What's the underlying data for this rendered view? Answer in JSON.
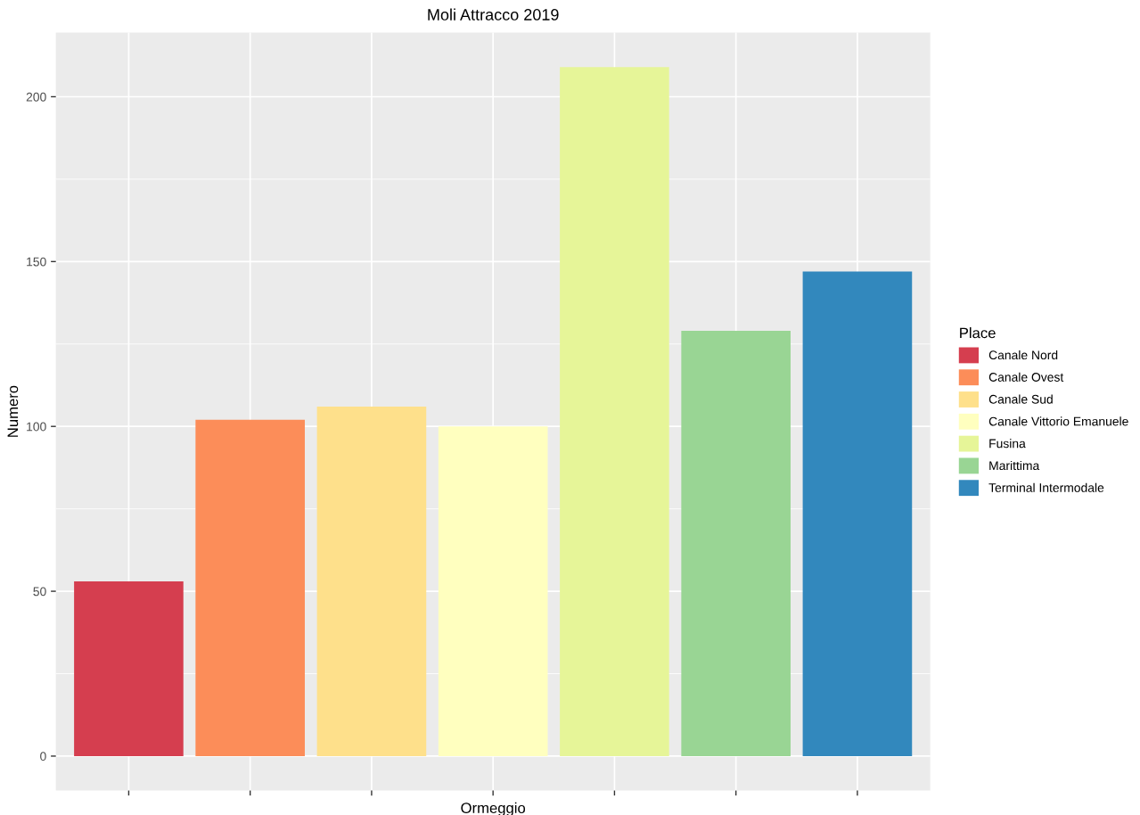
{
  "chart_data": {
    "type": "bar",
    "title": "Moli Attracco 2019",
    "xlabel": "Ormeggio",
    "ylabel": "Numero",
    "legend_title": "Place",
    "categories": [
      null,
      null,
      null,
      null,
      null,
      null,
      null
    ],
    "series": [
      {
        "name": "Canale Nord",
        "color": "#d53e4f",
        "values": [
          53,
          null,
          null,
          null,
          null,
          null,
          null
        ]
      },
      {
        "name": "Canale Ovest",
        "color": "#fc8d59",
        "values": [
          null,
          102,
          null,
          null,
          null,
          null,
          null
        ]
      },
      {
        "name": "Canale Sud",
        "color": "#fee08b",
        "values": [
          null,
          null,
          106,
          null,
          null,
          null,
          null
        ]
      },
      {
        "name": "Canale Vittorio Emanuele",
        "color": "#ffffbf",
        "values": [
          null,
          null,
          null,
          100,
          null,
          null,
          null
        ]
      },
      {
        "name": "Fusina",
        "color": "#e6f598",
        "values": [
          null,
          null,
          null,
          null,
          209,
          null,
          null
        ]
      },
      {
        "name": "Marittima",
        "color": "#99d594",
        "values": [
          null,
          null,
          null,
          null,
          null,
          129,
          null
        ]
      },
      {
        "name": "Terminal Intermodale",
        "color": "#3288bd",
        "values": [
          null,
          null,
          null,
          null,
          null,
          null,
          147
        ]
      }
    ],
    "ylim": [
      -10.45,
      219.45
    ],
    "yticks": [
      0,
      50,
      100,
      150,
      200
    ],
    "grid": true,
    "legend": "right"
  }
}
